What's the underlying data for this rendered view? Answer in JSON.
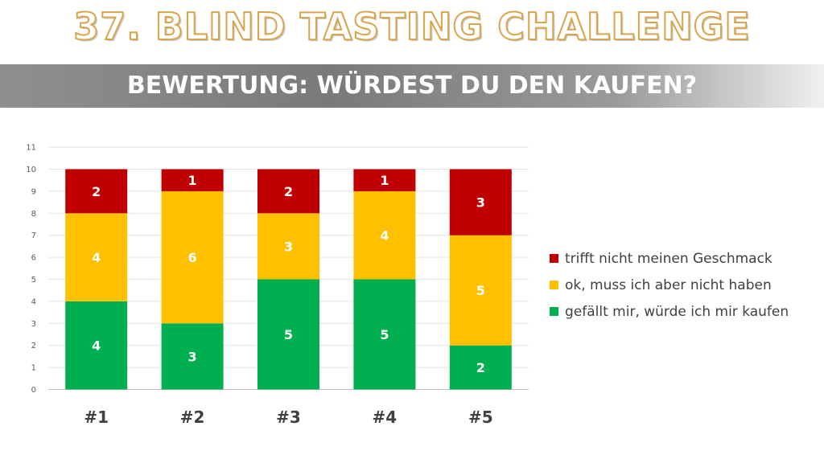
{
  "title": "37. BLIND TASTING CHALLENGE",
  "subtitle": "BEWERTUNG: WÜRDEST DU DEN KAUFEN?",
  "chart_data": {
    "type": "bar",
    "stacked": true,
    "categories": [
      "#1",
      "#2",
      "#3",
      "#4",
      "#5"
    ],
    "series": [
      {
        "name": "gefällt mir, würde ich mir kaufen",
        "color": "#00b050",
        "values": [
          4,
          3,
          5,
          5,
          2
        ]
      },
      {
        "name": "ok, muss ich aber nicht haben",
        "color": "#ffc000",
        "values": [
          4,
          6,
          3,
          4,
          5
        ]
      },
      {
        "name": "trifft nicht meinen Geschmack",
        "color": "#c00000",
        "values": [
          2,
          1,
          2,
          1,
          3
        ]
      }
    ],
    "ylim": [
      0,
      11
    ],
    "yticks": [
      0,
      1,
      2,
      3,
      4,
      5,
      6,
      7,
      8,
      9,
      10,
      11
    ],
    "grid": true,
    "legend_position": "right"
  }
}
